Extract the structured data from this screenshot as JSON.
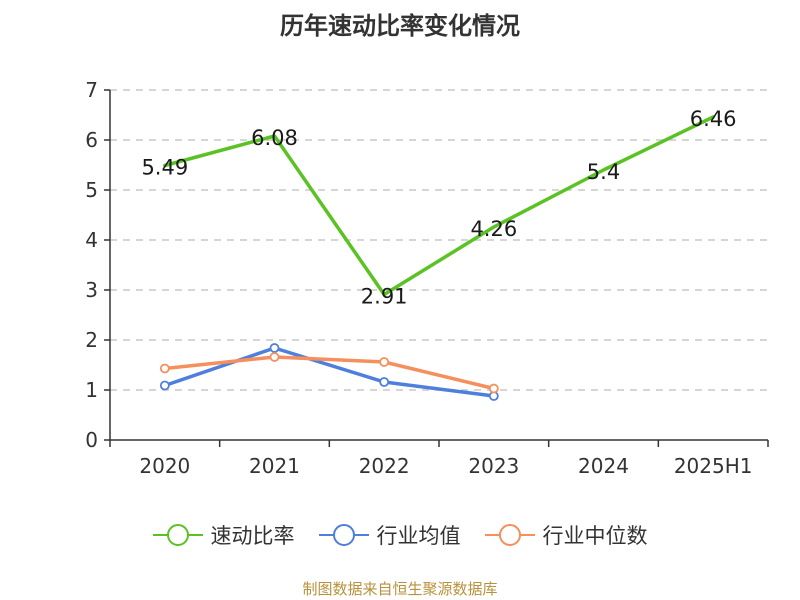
{
  "title": "历年速动比率变化情况",
  "source": "制图数据来自恒生聚源数据库",
  "chart_data": {
    "type": "line",
    "title": "历年速动比率变化情况",
    "xlabel": "",
    "ylabel": "",
    "categories": [
      "2020",
      "2021",
      "2022",
      "2023",
      "2024",
      "2025H1"
    ],
    "ylim": [
      0,
      7
    ],
    "yticks": [
      0,
      1,
      2,
      3,
      4,
      5,
      6,
      7
    ],
    "grid": true,
    "legend_position": "bottom",
    "series": [
      {
        "name": "速动比率",
        "color": "#5bc224",
        "values": [
          5.49,
          6.08,
          2.91,
          4.26,
          5.4,
          6.46
        ],
        "labels": [
          "5.49",
          "6.08",
          "2.91",
          "4.26",
          "5.4",
          "6.46"
        ]
      },
      {
        "name": "行业均值",
        "color": "#4f7fdc",
        "values": [
          1.09,
          1.84,
          1.16,
          0.88,
          null,
          null
        ]
      },
      {
        "name": "行业中位数",
        "color": "#f58f5c",
        "values": [
          1.43,
          1.66,
          1.56,
          1.03,
          null,
          null
        ]
      }
    ]
  }
}
